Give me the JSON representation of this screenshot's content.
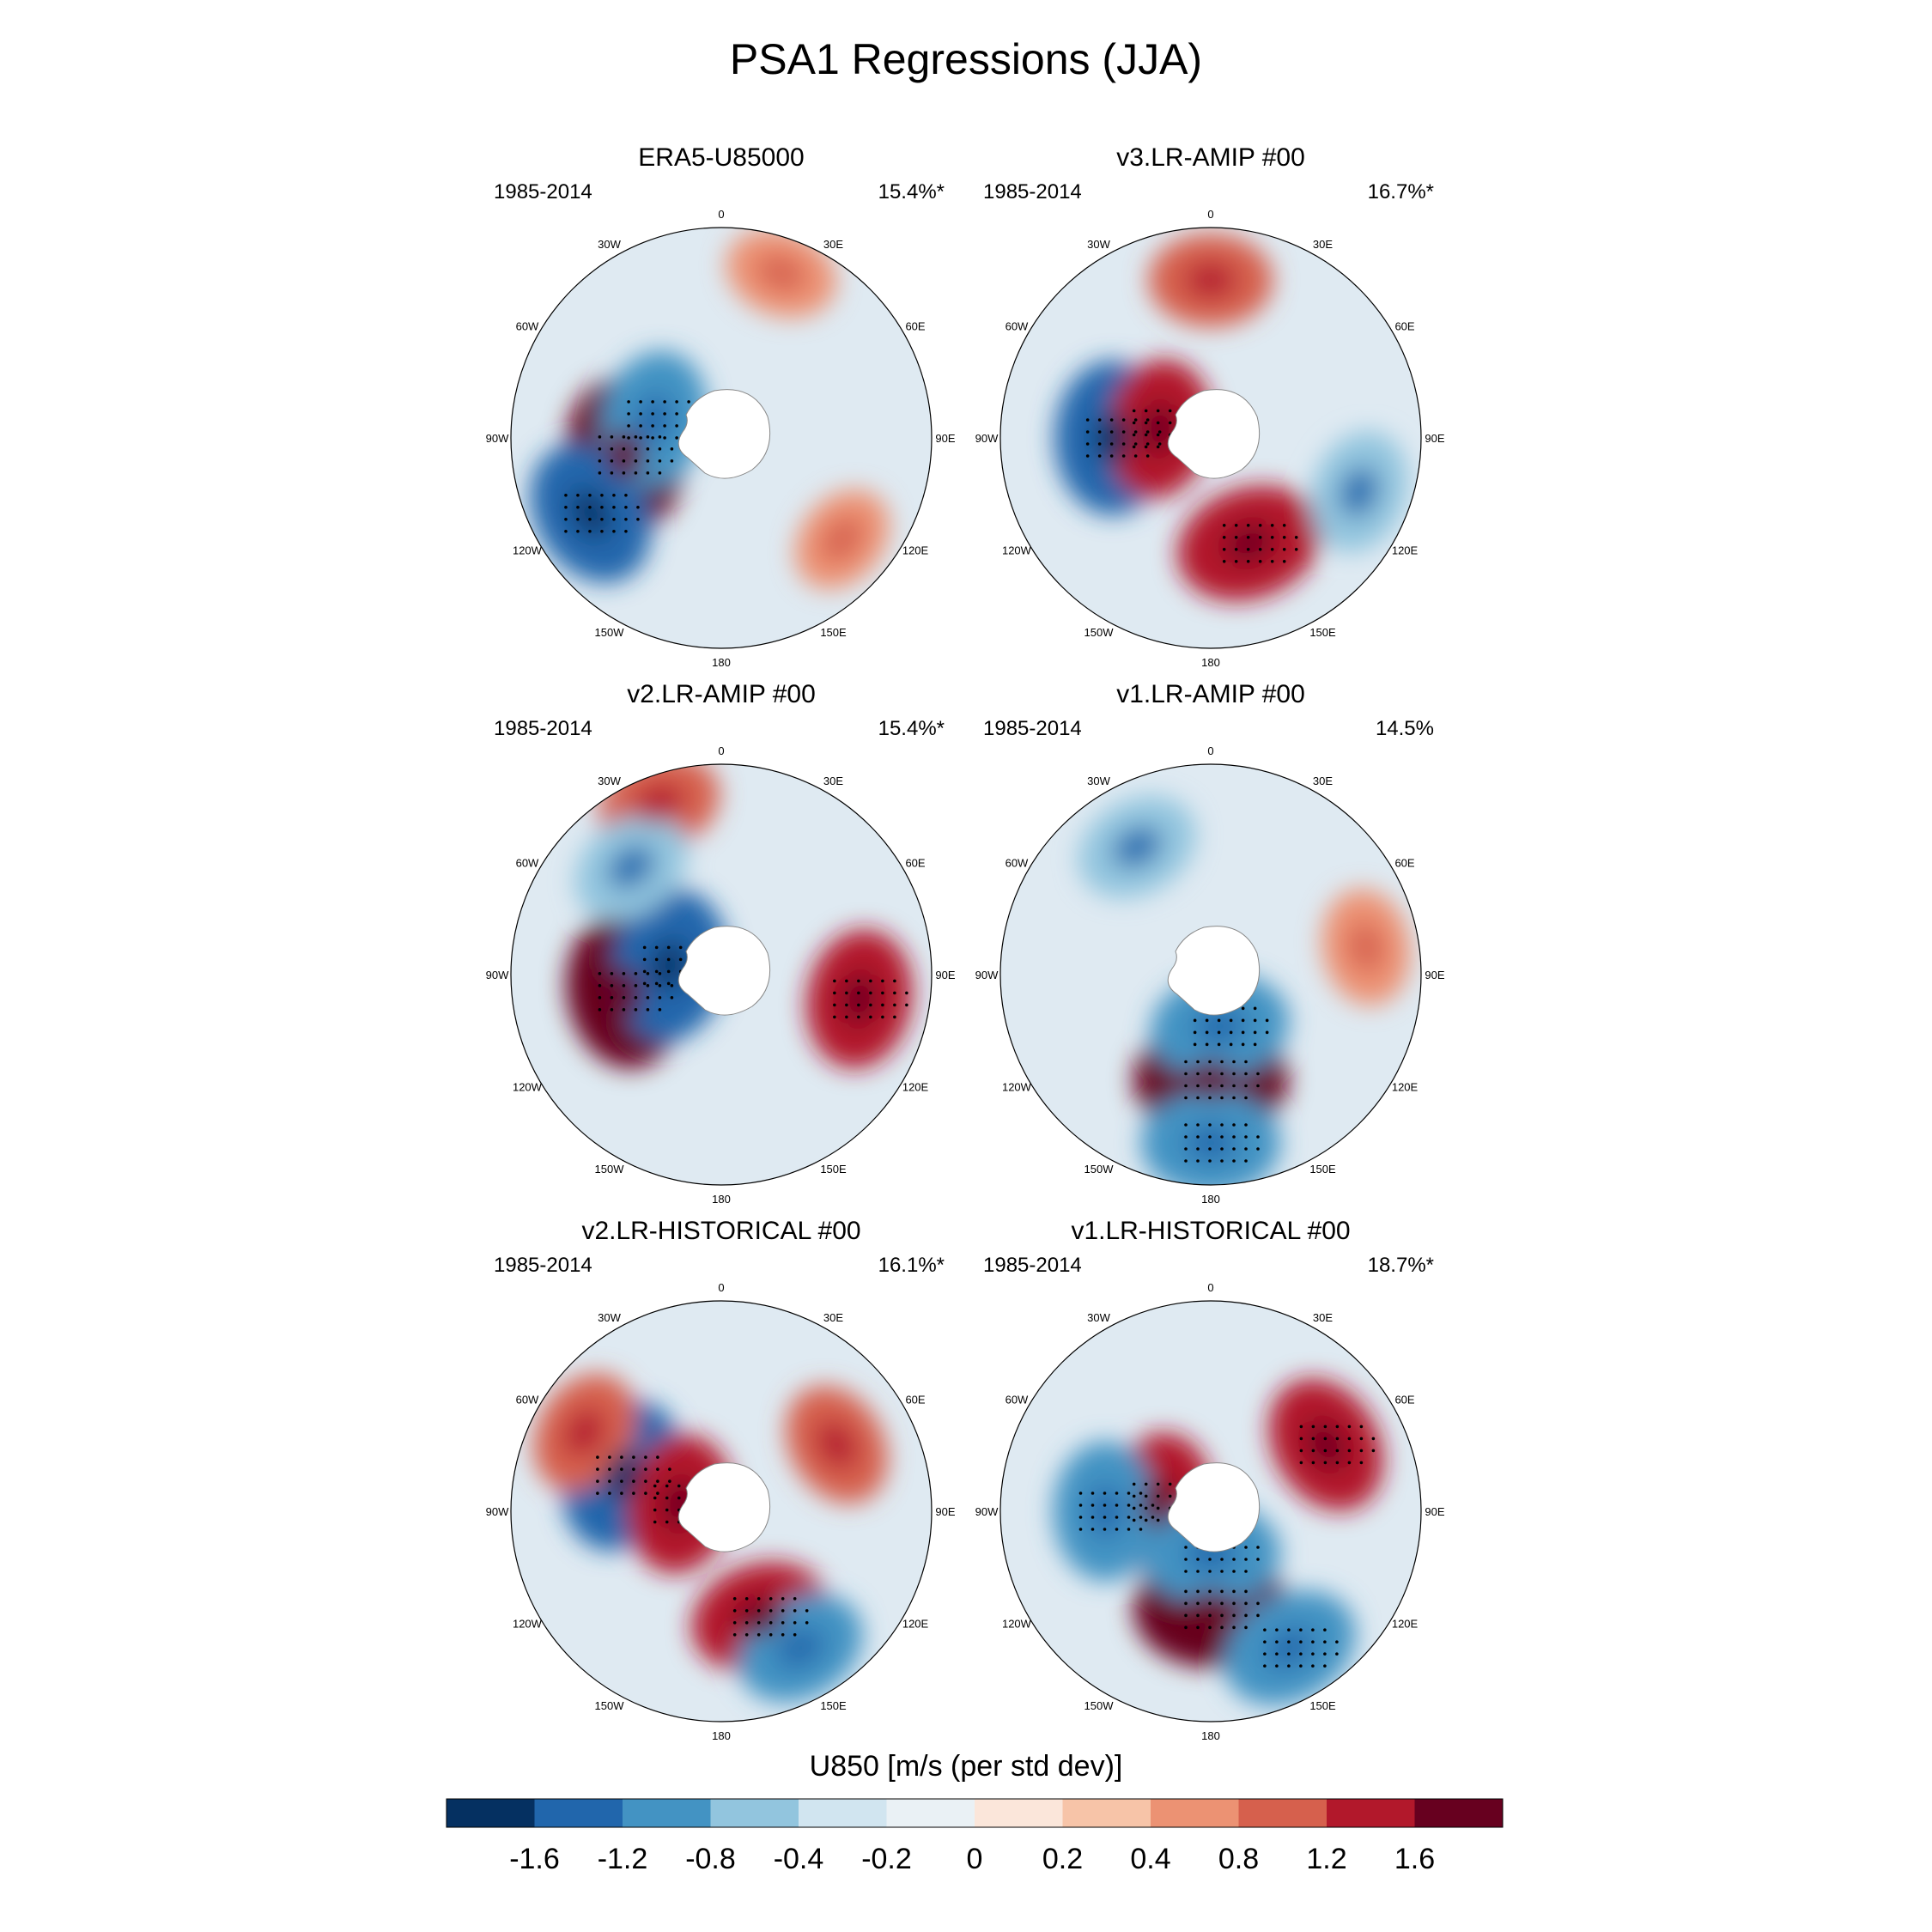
{
  "title": "PSA1 Regressions (JJA)",
  "colorbar": {
    "label": "U850 [m/s (per std dev)]",
    "colors": [
      "#053061",
      "#2166ac",
      "#4393c3",
      "#92c5de",
      "#d1e5f0",
      "#eaf1f5",
      "#fbe6da",
      "#f7c4a8",
      "#ec9273",
      "#d6604d",
      "#b2182b",
      "#67001f"
    ],
    "ticks": [
      "-1.6",
      "-1.2",
      "-0.8",
      "-0.4",
      "-0.2",
      "0",
      "0.2",
      "0.4",
      "0.8",
      "1.2",
      "1.6"
    ]
  },
  "lon_labels": [
    "0",
    "30E",
    "60E",
    "90E",
    "120E",
    "150E",
    "180",
    "150W",
    "120W",
    "90W",
    "60W",
    "30W"
  ],
  "panels": [
    {
      "title": "ERA5-U85000",
      "years": "1985-2014",
      "pct": "15.4%*"
    },
    {
      "title": "v3.LR-AMIP  #00",
      "years": "1985-2014",
      "pct": "16.7%*"
    },
    {
      "title": "v2.LR-AMIP  #00",
      "years": "1985-2014",
      "pct": "15.4%*"
    },
    {
      "title": "v1.LR-AMIP  #00",
      "years": "1985-2014",
      "pct": "14.5%"
    },
    {
      "title": "v2.LR-HISTORICAL  #00",
      "years": "1985-2014",
      "pct": "16.1%*"
    },
    {
      "title": "v1.LR-HISTORICAL  #00",
      "years": "1985-2014",
      "pct": "18.7%*"
    }
  ],
  "chart_data": [
    {
      "type": "heatmap",
      "title": "ERA5-U85000",
      "subtitle_left": "1985-2014",
      "subtitle_right": "15.4%*",
      "projection": "south polar stereographic",
      "variable": "U850 regression",
      "units": "m/s (per std dev)",
      "features": [
        {
          "lon": -100,
          "lat": -62,
          "value": 1.6
        },
        {
          "lon": -120,
          "lat": -47,
          "value": -1.4
        },
        {
          "lon": -75,
          "lat": -70,
          "value": -1.2
        },
        {
          "lon": 20,
          "lat": -40,
          "value": 0.5
        },
        {
          "lon": 130,
          "lat": -45,
          "value": 0.4
        }
      ]
    },
    {
      "type": "heatmap",
      "title": "v3.LR-AMIP  #00",
      "subtitle_left": "1985-2014",
      "subtitle_right": "16.7%*",
      "projection": "south polar stereographic",
      "variable": "U850 regression",
      "units": "m/s (per std dev)",
      "features": [
        {
          "lon": -90,
          "lat": -62,
          "value": -1.6
        },
        {
          "lon": 160,
          "lat": -58,
          "value": 1.4
        },
        {
          "lon": 0,
          "lat": -45,
          "value": 0.8
        },
        {
          "lon": -80,
          "lat": -75,
          "value": 1.2
        },
        {
          "lon": 110,
          "lat": -45,
          "value": -0.8
        }
      ]
    },
    {
      "type": "heatmap",
      "title": "v2.LR-AMIP  #00",
      "subtitle_left": "1985-2014",
      "subtitle_right": "15.4%*",
      "projection": "south polar stereographic",
      "variable": "U850 regression",
      "units": "m/s (per std dev)",
      "features": [
        {
          "lon": -100,
          "lat": -62,
          "value": 1.6
        },
        {
          "lon": -80,
          "lat": -75,
          "value": -1.6
        },
        {
          "lon": 100,
          "lat": -50,
          "value": 1.2
        },
        {
          "lon": -20,
          "lat": -38,
          "value": 0.8
        },
        {
          "lon": -40,
          "lat": -50,
          "value": -0.8
        }
      ]
    },
    {
      "type": "heatmap",
      "title": "v1.LR-AMIP  #00",
      "subtitle_left": "1985-2014",
      "subtitle_right": "14.5%",
      "projection": "south polar stereographic",
      "variable": "U850 regression",
      "units": "m/s (per std dev)",
      "features": [
        {
          "lon": 180,
          "lat": -60,
          "value": 1.6
        },
        {
          "lon": 180,
          "lat": -42,
          "value": -1.2
        },
        {
          "lon": -30,
          "lat": -48,
          "value": -0.8
        },
        {
          "lon": 170,
          "lat": -75,
          "value": -1.2
        },
        {
          "lon": 80,
          "lat": -45,
          "value": 0.6
        }
      ]
    },
    {
      "type": "heatmap",
      "title": "v2.LR-HISTORICAL  #00",
      "subtitle_left": "1985-2014",
      "subtitle_right": "16.1%*",
      "projection": "south polar stereographic",
      "variable": "U850 regression",
      "units": "m/s (per std dev)",
      "features": [
        {
          "lon": -70,
          "lat": -60,
          "value": -1.6
        },
        {
          "lon": -80,
          "lat": -78,
          "value": 1.2
        },
        {
          "lon": 160,
          "lat": -58,
          "value": 1.2
        },
        {
          "lon": 60,
          "lat": -52,
          "value": 0.8
        },
        {
          "lon": -60,
          "lat": -45,
          "value": 0.8
        },
        {
          "lon": 150,
          "lat": -45,
          "value": -1.0
        }
      ]
    },
    {
      "type": "heatmap",
      "title": "v1.LR-HISTORICAL  #00",
      "subtitle_left": "1985-2014",
      "subtitle_right": "18.7%*",
      "projection": "south polar stereographic",
      "variable": "U850 regression",
      "units": "m/s (per std dev)",
      "features": [
        {
          "lon": 180,
          "lat": -62,
          "value": 1.6
        },
        {
          "lon": -80,
          "lat": -75,
          "value": 1.2
        },
        {
          "lon": 60,
          "lat": -52,
          "value": 1.2
        },
        {
          "lon": -90,
          "lat": -60,
          "value": -1.2
        },
        {
          "lon": 150,
          "lat": -45,
          "value": -1.2
        },
        {
          "lon": 180,
          "lat": -78,
          "value": -1.2
        }
      ]
    }
  ]
}
